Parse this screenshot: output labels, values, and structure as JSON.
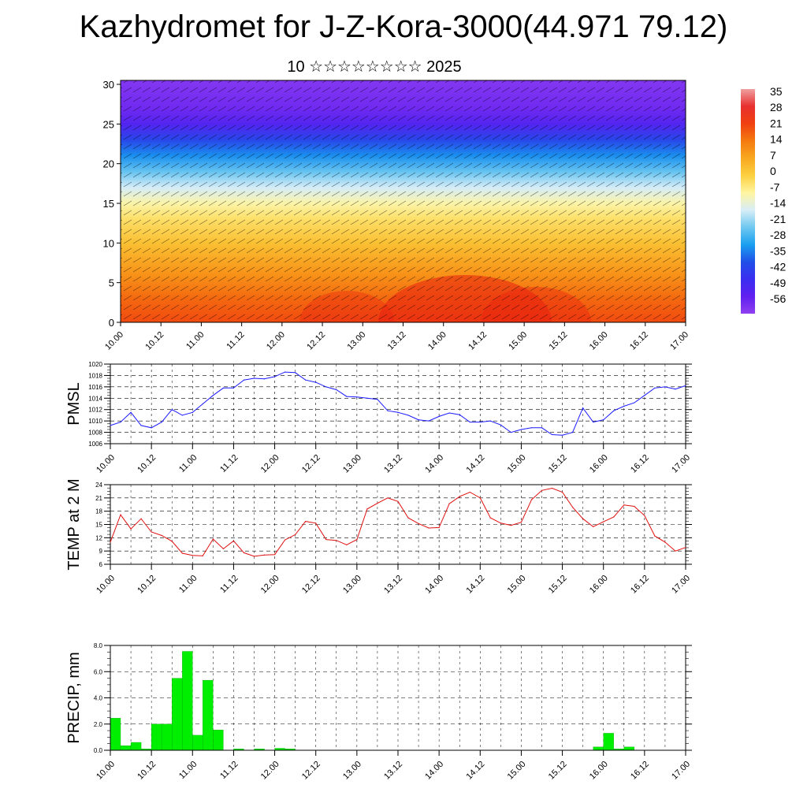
{
  "title": "Kazhydromet for J-Z-Kora-3000(44.971 79.12)",
  "subtitle": "10 ☆☆☆☆☆☆☆☆ 2025",
  "colors": {
    "pmsl_line": "#1a1aff",
    "temp_line": "#e01010",
    "precip_bar": "#00ee00",
    "precip_edge": "#009900",
    "grid": "#000000"
  },
  "chart_data": [
    {
      "id": "cross_section",
      "type": "heatmap",
      "title": "",
      "xlabel": "",
      "ylabel": "",
      "x_ticks": [
        "10.00",
        "10.12",
        "11.00",
        "11.12",
        "12.00",
        "12.12",
        "13.00",
        "13.12",
        "14.00",
        "14.12",
        "15.00",
        "15.12",
        "16.00",
        "16.12",
        "17.00"
      ],
      "y_ticks": [
        0,
        5,
        10,
        15,
        20,
        25,
        30
      ],
      "ylim": [
        0,
        30.5
      ],
      "colorbar": {
        "labels": [
          "35",
          "28",
          "21",
          "14",
          "7",
          "0",
          "-7",
          "-14",
          "-21",
          "-28",
          "-35",
          "-42",
          "-49",
          "-56"
        ],
        "colors": [
          "#f0a0a0",
          "#e83030",
          "#f04010",
          "#f57a10",
          "#f8a820",
          "#fcd040",
          "#fff5a0",
          "#d8eef8",
          "#70c8f0",
          "#1aa0f0",
          "#2050e8",
          "#3a2ef0",
          "#6020f0",
          "#9040f0"
        ]
      },
      "profile": [
        {
          "level": 0,
          "temperature": 20
        },
        {
          "level": 3,
          "temperature": 16
        },
        {
          "level": 6,
          "temperature": 10
        },
        {
          "level": 10,
          "temperature": 2
        },
        {
          "level": 13,
          "temperature": -4
        },
        {
          "level": 15,
          "temperature": -9
        },
        {
          "level": 17,
          "temperature": -16
        },
        {
          "level": 19,
          "temperature": -24
        },
        {
          "level": 21,
          "temperature": -32
        },
        {
          "level": 23,
          "temperature": -40
        },
        {
          "level": 25,
          "temperature": -50
        },
        {
          "level": 27,
          "temperature": -55
        },
        {
          "level": 30.5,
          "temperature": -58
        }
      ],
      "overlay": "wind barbs"
    },
    {
      "id": "pmsl",
      "type": "line",
      "ylabel": "PMSL",
      "ylim": [
        1006,
        1020
      ],
      "y_ticks": [
        1006,
        1008,
        1010,
        1012,
        1014,
        1016,
        1018,
        1020
      ],
      "x_ticks": [
        "10.00",
        "10.12",
        "11.00",
        "11.12",
        "12.00",
        "12.12",
        "13.00",
        "13.12",
        "14.00",
        "14.12",
        "15.00",
        "15.12",
        "16.00",
        "16.12",
        "17.00"
      ],
      "x_hours": [
        0,
        3,
        6,
        9,
        12,
        15,
        18,
        21,
        24,
        27,
        30,
        33,
        36,
        39,
        42,
        45,
        48,
        51,
        54,
        57,
        60,
        63,
        66,
        69,
        72,
        75,
        78,
        81,
        84,
        87,
        90,
        93,
        96,
        99,
        102,
        105,
        108,
        111,
        114,
        117,
        120,
        123,
        126,
        129,
        132,
        135,
        138,
        141,
        144,
        147,
        150,
        153,
        156,
        159,
        162,
        165,
        168
      ],
      "values": [
        1009.2,
        1009.8,
        1011.5,
        1009.2,
        1008.8,
        1009.8,
        1012.0,
        1011.0,
        1011.5,
        1013.0,
        1014.5,
        1015.8,
        1015.8,
        1017.2,
        1017.5,
        1017.4,
        1017.8,
        1018.6,
        1018.5,
        1017.2,
        1016.8,
        1016.0,
        1015.5,
        1014.3,
        1014.2,
        1014.0,
        1013.8,
        1011.8,
        1011.5,
        1011.0,
        1010.2,
        1010.0,
        1010.8,
        1011.4,
        1011.1,
        1009.8,
        1009.8,
        1010.0,
        1009.3,
        1008.0,
        1008.5,
        1008.8,
        1008.8,
        1007.6,
        1007.5,
        1008.0,
        1012.3,
        1009.8,
        1010.2,
        1011.8,
        1012.6,
        1013.2,
        1014.5,
        1015.8,
        1016.0,
        1015.6,
        1016.2
      ]
    },
    {
      "id": "temp",
      "type": "line",
      "ylabel": "TEMP at 2 M",
      "ylim": [
        6,
        24
      ],
      "y_ticks": [
        6,
        9,
        12,
        15,
        18,
        21,
        24
      ],
      "x_ticks": [
        "10.00",
        "10.12",
        "11.00",
        "11.12",
        "12.00",
        "12.12",
        "13.00",
        "13.12",
        "14.00",
        "14.12",
        "15.00",
        "15.12",
        "16.00",
        "16.12",
        "17.00"
      ],
      "x_hours": [
        0,
        3,
        6,
        9,
        12,
        15,
        18,
        21,
        24,
        27,
        30,
        33,
        36,
        39,
        42,
        45,
        48,
        51,
        54,
        57,
        60,
        63,
        66,
        69,
        72,
        75,
        78,
        81,
        84,
        87,
        90,
        93,
        96,
        99,
        102,
        105,
        108,
        111,
        114,
        117,
        120,
        123,
        126,
        129,
        132,
        135,
        138,
        141,
        144,
        147,
        150,
        153,
        156,
        159,
        162,
        165,
        168
      ],
      "values": [
        11.0,
        17.2,
        14.0,
        16.3,
        13.3,
        12.5,
        11.2,
        8.5,
        8.0,
        7.9,
        11.7,
        9.5,
        11.3,
        8.6,
        7.8,
        8.1,
        8.2,
        11.5,
        12.7,
        15.7,
        15.3,
        11.6,
        11.4,
        10.4,
        11.6,
        18.5,
        19.8,
        21.0,
        20.2,
        16.5,
        15.2,
        14.2,
        14.3,
        19.7,
        21.3,
        22.3,
        21.0,
        16.5,
        15.3,
        14.8,
        15.5,
        20.6,
        22.7,
        23.2,
        22.3,
        18.9,
        16.3,
        14.5,
        15.6,
        16.7,
        19.4,
        19.1,
        17.0,
        12.4,
        11.0,
        9.0,
        9.8
      ]
    },
    {
      "id": "precip",
      "type": "bar",
      "ylabel": "PRECIP, mm",
      "ylim": [
        0,
        8.0
      ],
      "y_ticks": [
        "0.0",
        "2.0",
        "4.0",
        "6.0",
        "8.0"
      ],
      "x_ticks": [
        "10.00",
        "10.12",
        "11.00",
        "11.12",
        "12.00",
        "12.12",
        "13.00",
        "13.12",
        "14.00",
        "14.12",
        "15.00",
        "15.12",
        "16.00",
        "16.12",
        "17.00"
      ],
      "bar_hours": [
        3,
        6,
        9,
        12,
        15,
        18,
        21,
        24,
        27,
        30,
        33,
        36,
        39,
        42,
        45,
        48,
        51,
        54,
        57,
        60,
        63,
        66,
        69,
        72,
        75,
        78,
        81,
        84,
        87,
        90,
        93,
        96,
        99,
        102,
        105,
        108,
        111,
        114,
        117,
        120,
        123,
        126,
        129,
        132,
        135,
        138,
        141,
        144,
        147,
        150,
        153,
        156,
        159,
        162,
        165,
        168
      ],
      "values": [
        2.45,
        0.35,
        0.6,
        0.1,
        2.0,
        2.0,
        5.5,
        7.55,
        1.15,
        5.35,
        1.55,
        0.0,
        0.1,
        0.0,
        0.1,
        0.0,
        0.15,
        0.1,
        0.0,
        0.0,
        0.0,
        0.0,
        0.0,
        0.0,
        0.0,
        0.0,
        0.0,
        0.0,
        0.0,
        0.0,
        0.0,
        0.0,
        0.0,
        0.0,
        0.0,
        0.0,
        0.0,
        0.0,
        0.0,
        0.0,
        0.0,
        0.0,
        0.0,
        0.0,
        0.0,
        0.0,
        0.0,
        0.25,
        1.3,
        0.1,
        0.25,
        0.0,
        0.0,
        0.0,
        0.0,
        0.0
      ]
    }
  ]
}
